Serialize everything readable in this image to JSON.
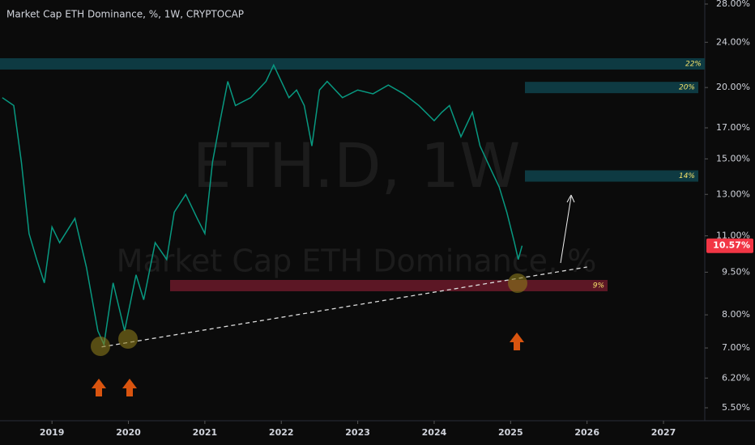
{
  "chart_data": {
    "type": "line",
    "title": "Market Cap ETH Dominance, %, 1W, CRYPTOCAP",
    "watermark": "ETH.D, 1W",
    "watermark_subtitle": "Market Cap ETH Dominance, %",
    "log_scale": true,
    "xlim": [
      2018.32,
      2027.54
    ],
    "xticks": [
      2019,
      2020,
      2021,
      2022,
      2023,
      2024,
      2025,
      2026,
      2027
    ],
    "ylim": [
      5.5,
      28
    ],
    "yticks": [
      {
        "value": 5.5,
        "label": "5.50%"
      },
      {
        "value": 6.2,
        "label": "6.20%"
      },
      {
        "value": 7,
        "label": "7.00%"
      },
      {
        "value": 8,
        "label": "8.00%"
      },
      {
        "value": 9.5,
        "label": "9.50%"
      },
      {
        "value": 11,
        "label": "11.00%"
      },
      {
        "value": 13,
        "label": "13.00%"
      },
      {
        "value": 15,
        "label": "15.00%"
      },
      {
        "value": 17,
        "label": "17.00%"
      },
      {
        "value": 20,
        "label": "20.00%"
      },
      {
        "value": 24,
        "label": "24.00%"
      },
      {
        "value": 28,
        "label": "28.00%"
      }
    ],
    "series": [
      {
        "name": "ETH.D",
        "color": "#089981",
        "x": [
          2018.35,
          2018.5,
          2018.6,
          2018.7,
          2018.8,
          2018.9,
          2019.0,
          2019.1,
          2019.3,
          2019.45,
          2019.6,
          2019.68,
          2019.8,
          2019.95,
          2020.1,
          2020.2,
          2020.35,
          2020.5,
          2020.6,
          2020.75,
          2020.9,
          2021.0,
          2021.1,
          2021.2,
          2021.3,
          2021.4,
          2021.6,
          2021.8,
          2021.9,
          2022.0,
          2022.1,
          2022.2,
          2022.3,
          2022.4,
          2022.5,
          2022.6,
          2022.8,
          2023.0,
          2023.2,
          2023.4,
          2023.6,
          2023.8,
          2024.0,
          2024.1,
          2024.2,
          2024.35,
          2024.5,
          2024.6,
          2024.75,
          2024.85,
          2024.95,
          2025.05,
          2025.1,
          2025.15
        ],
        "values": [
          19.2,
          18.6,
          14.8,
          11.1,
          10.0,
          9.1,
          11.4,
          10.7,
          11.8,
          9.7,
          7.5,
          7.1,
          9.1,
          7.5,
          9.4,
          8.5,
          10.7,
          10.0,
          12.1,
          13.0,
          11.8,
          11.1,
          14.8,
          17.5,
          20.5,
          18.6,
          19.2,
          20.5,
          21.9,
          20.5,
          19.2,
          19.8,
          18.6,
          15.8,
          19.8,
          20.5,
          19.2,
          19.8,
          19.5,
          20.2,
          19.5,
          18.6,
          17.5,
          18.1,
          18.6,
          16.4,
          18.1,
          15.8,
          14.3,
          13.4,
          12.1,
          10.7,
          10.0,
          10.57
        ]
      }
    ],
    "last_price": {
      "value": 10.57,
      "label": "10.57%"
    },
    "zones": [
      {
        "value": 22,
        "label": "22%"
      },
      {
        "value": 20,
        "label": "20%"
      },
      {
        "value": 14,
        "label": "14%"
      },
      {
        "value": 9,
        "label": "9%"
      }
    ],
    "trendline": {
      "x": [
        2019.65,
        2026.0
      ],
      "values": [
        7.03,
        9.7
      ]
    }
  }
}
